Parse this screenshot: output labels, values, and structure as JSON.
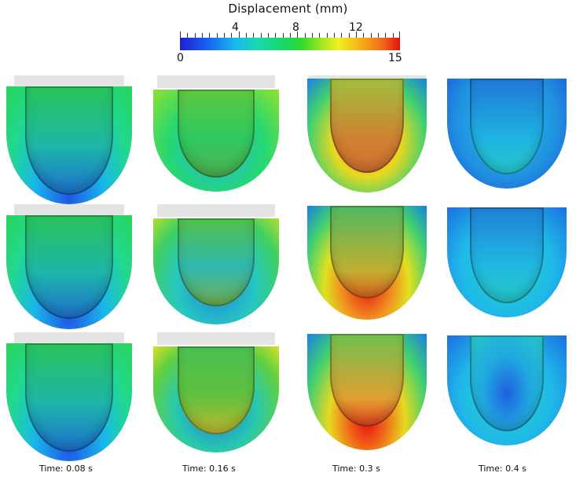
{
  "colorbar": {
    "title": "Displacement (mm)",
    "min_label": "0",
    "max_label": "15",
    "tick_labels": [
      "4",
      "8",
      "12"
    ]
  },
  "time_labels": [
    "Time:   0.08 s",
    "Time:   0.16 s",
    "Time:   0.3 s",
    "Time:   0.4 s"
  ]
}
